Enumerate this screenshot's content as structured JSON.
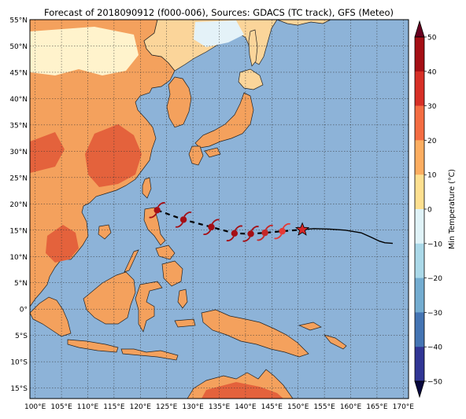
{
  "title": "Forecast of 2018090912 (f000-006), Sources: GDACS (TC track), GFS (Meteo)",
  "colors": {
    "ocean": "#8db3d8",
    "land_hot": "#f4a15d",
    "land_warm": "#fbd59a",
    "land_mild": "#fff3cc",
    "land_cool": "#e4f2f8",
    "land_vhot": "#e4623c",
    "track_past": "#000000",
    "storm_red": "#a50f15",
    "storm_mid": "#c62828",
    "storm_light": "#e53935",
    "star": "#d62728"
  },
  "map": {
    "lon_range": [
      99,
      171
    ],
    "lat_range": [
      -17,
      55
    ],
    "lon_ticks": [
      100,
      105,
      110,
      115,
      120,
      125,
      130,
      135,
      140,
      145,
      150,
      155,
      160,
      165,
      170
    ],
    "lon_labels": [
      "100°E",
      "105°E",
      "110°E",
      "115°E",
      "120°E",
      "125°E",
      "130°E",
      "135°E",
      "140°E",
      "145°E",
      "150°E",
      "155°E",
      "160°E",
      "165°E",
      "170°E"
    ],
    "lat_ticks": [
      55,
      50,
      45,
      40,
      35,
      30,
      25,
      20,
      15,
      10,
      5,
      0,
      -5,
      -10,
      -15
    ],
    "lat_labels": [
      "55°N",
      "50°N",
      "45°N",
      "40°N",
      "35°N",
      "30°N",
      "25°N",
      "20°N",
      "15°N",
      "10°N",
      "5°N",
      "0°",
      "5°S",
      "10°S",
      "15°S"
    ],
    "grid": true
  },
  "track": {
    "forecast_points": [
      [
        123.2,
        18.8
      ],
      [
        128.2,
        17.0
      ],
      [
        133.5,
        15.6
      ],
      [
        137.9,
        14.4
      ],
      [
        141.0,
        14.3
      ],
      [
        143.7,
        14.5
      ],
      [
        147.0,
        14.8
      ]
    ],
    "current": [
      150.8,
      15.1
    ],
    "past_track": [
      [
        150.8,
        15.1
      ],
      [
        153,
        15.3
      ],
      [
        156,
        15.2
      ],
      [
        159,
        15.0
      ],
      [
        162,
        14.5
      ],
      [
        164,
        13.6
      ],
      [
        165.5,
        12.9
      ],
      [
        166.5,
        12.6
      ],
      [
        168,
        12.5
      ]
    ]
  },
  "colorbar": {
    "label": "Min Temperature (°C)",
    "ticks": [
      "50",
      "40",
      "30",
      "20",
      "10",
      "0",
      "−10",
      "−20",
      "−30",
      "−40",
      "−50"
    ],
    "colors": [
      "#67001f",
      "#b2182b",
      "#d6604d",
      "#f4a582",
      "#fddbc7",
      "#f7f7f7",
      "#d1e5f0",
      "#92c5de",
      "#4393c3",
      "#2166ac",
      "#053061"
    ],
    "band_colors": [
      "#a50f15",
      "#d73027",
      "#f46d43",
      "#fdae61",
      "#fee090",
      "#e0f3f8",
      "#abd9e9",
      "#74add1",
      "#4575b4",
      "#313695"
    ]
  }
}
